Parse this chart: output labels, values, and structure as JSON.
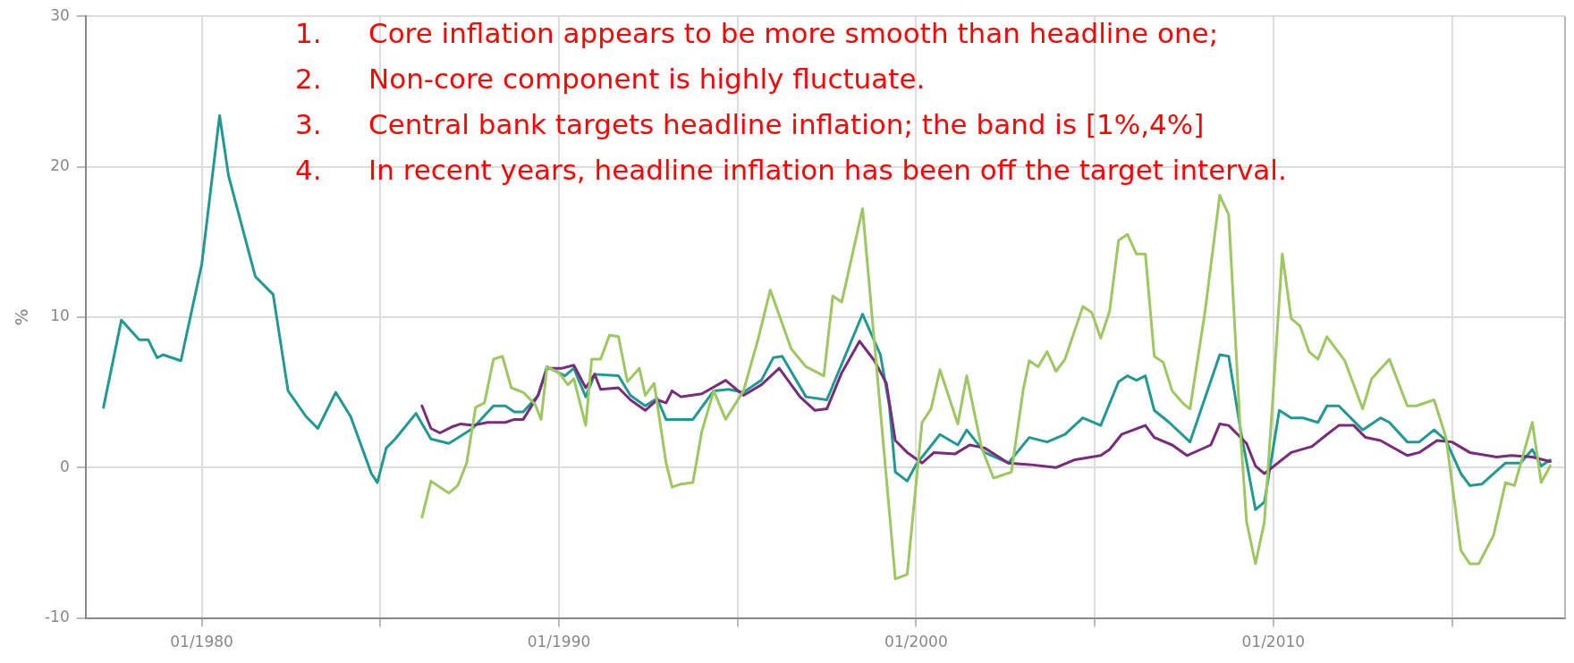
{
  "chart_data": {
    "type": "line",
    "ylabel": "%",
    "xlim": [
      "1976-10",
      "2018-03"
    ],
    "ylim": [
      -10,
      30
    ],
    "xticks": [
      {
        "value": "1980-01",
        "label": "01/1980"
      },
      {
        "value": "1985-01",
        "label": null
      },
      {
        "value": "1990-01",
        "label": "01/1990"
      },
      {
        "value": "1995-01",
        "label": null
      },
      {
        "value": "2000-01",
        "label": "01/2000"
      },
      {
        "value": "2005-01",
        "label": null
      },
      {
        "value": "2010-01",
        "label": "01/2010"
      },
      {
        "value": "2015-01",
        "label": null
      }
    ],
    "yticks": [
      -10,
      0,
      10,
      20,
      30
    ],
    "grid": true,
    "legend": false,
    "marker": "none",
    "line_style": "solid",
    "annotations": [
      "1.\tCore inflation appears to be more smooth than headline one;",
      "2.\tNon-core component is highly fluctuate.",
      "3.\tCentral bank targets headline inflation; the band is [1%,4%]",
      "4.\tIn recent years, headline inflation has been off the target interval."
    ],
    "series": [
      {
        "color": "#9dc75f",
        "x": [
          "1986-03",
          "1986-06",
          "1986-12",
          "1987-03",
          "1987-06",
          "1987-09",
          "1987-12",
          "1988-03",
          "1988-06",
          "1988-09",
          "1989-01",
          "1989-05",
          "1989-07",
          "1989-09",
          "1990-01",
          "1990-04",
          "1990-06",
          "1990-10",
          "1990-12",
          "1991-03",
          "1991-06",
          "1991-09",
          "1991-12",
          "1992-04",
          "1992-06",
          "1992-09",
          "1993-01",
          "1993-03",
          "1993-06",
          "1993-10",
          "1994-01",
          "1994-05",
          "1994-09",
          "1995-03",
          "1995-08",
          "1995-12",
          "1996-07",
          "1996-12",
          "1997-06",
          "1997-09",
          "1997-12",
          "1998-07",
          "1999-06",
          "1999-10",
          "2000-03",
          "2000-06",
          "2000-09",
          "2001-03",
          "2001-06",
          "2001-11",
          "2002-03",
          "2002-09",
          "2003-01",
          "2003-03",
          "2003-06",
          "2003-09",
          "2003-12",
          "2004-03",
          "2004-09",
          "2004-12",
          "2005-03",
          "2005-06",
          "2005-09",
          "2005-12",
          "2006-03",
          "2006-06",
          "2006-09",
          "2006-12",
          "2007-03",
          "2007-07",
          "2007-09",
          "2008-02",
          "2008-07",
          "2008-10",
          "2009-02",
          "2009-04",
          "2009-07",
          "2009-10",
          "2010-01",
          "2010-04",
          "2010-07",
          "2010-10",
          "2011-01",
          "2011-04",
          "2011-07",
          "2012-01",
          "2012-07",
          "2012-10",
          "2013-04",
          "2013-10",
          "2014-01",
          "2014-07",
          "2014-11",
          "2015-04",
          "2015-07",
          "2015-10",
          "2016-03",
          "2016-07",
          "2016-10",
          "2017-04",
          "2017-07",
          "2017-10"
        ],
        "values": [
          -3.3,
          -0.9,
          -1.7,
          -1.2,
          0.3,
          4.0,
          4.3,
          7.2,
          7.4,
          5.3,
          5.0,
          4.2,
          3.2,
          6.7,
          6.3,
          5.5,
          5.9,
          2.8,
          7.2,
          7.2,
          8.8,
          8.7,
          5.7,
          6.6,
          4.8,
          5.6,
          0.3,
          -1.3,
          -1.1,
          -1.0,
          2.4,
          5.1,
          3.2,
          5.1,
          8.6,
          11.8,
          7.9,
          6.7,
          6.1,
          11.4,
          11.0,
          17.2,
          -7.4,
          -7.1,
          3.0,
          3.9,
          6.5,
          2.9,
          6.1,
          1.3,
          -0.7,
          -0.3,
          5.2,
          7.1,
          6.7,
          7.7,
          6.4,
          7.2,
          10.7,
          10.3,
          8.6,
          10.4,
          15.1,
          15.5,
          14.2,
          14.2,
          7.4,
          7.0,
          5.1,
          4.2,
          3.9,
          10.3,
          18.1,
          16.8,
          2.2,
          -3.6,
          -6.4,
          -3.6,
          5.1,
          14.2,
          9.9,
          9.4,
          7.7,
          7.2,
          8.7,
          7.1,
          3.9,
          5.9,
          7.2,
          4.1,
          4.1,
          4.5,
          2.0,
          -5.5,
          -6.4,
          -6.4,
          -4.5,
          -1.0,
          -1.2,
          3.0,
          -1.0,
          0.1
        ]
      },
      {
        "color": "#7a2b7c",
        "x": [
          "1986-03",
          "1986-06",
          "1986-09",
          "1987-01",
          "1987-04",
          "1987-08",
          "1988-01",
          "1988-07",
          "1988-10",
          "1989-01",
          "1989-06",
          "1989-09",
          "1990-02",
          "1990-06",
          "1990-10",
          "1991-01",
          "1991-03",
          "1991-09",
          "1992-01",
          "1992-06",
          "1992-10",
          "1993-01",
          "1993-03",
          "1993-06",
          "1994-01",
          "1994-09",
          "1995-03",
          "1995-09",
          "1996-03",
          "1996-10",
          "1997-03",
          "1997-07",
          "1997-12",
          "1998-06",
          "1998-11",
          "1999-03",
          "1999-06",
          "1999-10",
          "2000-03",
          "2000-07",
          "2001-02",
          "2001-07",
          "2001-12",
          "2002-08",
          "2003-03",
          "2003-12",
          "2004-06",
          "2005-03",
          "2005-06",
          "2005-10",
          "2006-06",
          "2006-09",
          "2007-03",
          "2007-08",
          "2008-04",
          "2008-07",
          "2008-10",
          "2009-04",
          "2009-07",
          "2009-10",
          "2010-07",
          "2011-02",
          "2011-07",
          "2011-11",
          "2012-04",
          "2012-08",
          "2013-01",
          "2013-10",
          "2014-02",
          "2014-08",
          "2015-01",
          "2015-07",
          "2016-04",
          "2016-09",
          "2017-04",
          "2017-10"
        ],
        "values": [
          4.1,
          2.6,
          2.3,
          2.7,
          2.9,
          2.8,
          3.0,
          3.0,
          3.2,
          3.2,
          4.8,
          6.6,
          6.6,
          6.8,
          5.3,
          6.2,
          5.2,
          5.3,
          4.5,
          3.8,
          4.5,
          4.3,
          5.1,
          4.7,
          4.9,
          5.8,
          4.8,
          5.5,
          6.6,
          4.7,
          3.8,
          3.9,
          6.3,
          8.4,
          7.1,
          5.6,
          1.8,
          1.0,
          0.3,
          1.0,
          0.9,
          1.5,
          1.3,
          0.3,
          0.2,
          0.0,
          0.5,
          0.8,
          1.2,
          2.2,
          2.8,
          2.0,
          1.5,
          0.8,
          1.5,
          2.9,
          2.8,
          1.6,
          0.1,
          -0.4,
          1.0,
          1.4,
          2.2,
          2.8,
          2.8,
          2.0,
          1.8,
          0.8,
          1.0,
          1.8,
          1.7,
          1.0,
          0.7,
          0.8,
          0.7,
          0.4
        ]
      },
      {
        "color": "#1f9a93",
        "x": [
          "1977-04",
          "1977-10",
          "1978-04",
          "1978-07",
          "1978-10",
          "1978-12",
          "1979-06",
          "1980-01",
          "1980-07",
          "1980-10",
          "1981-07",
          "1982-01",
          "1982-06",
          "1982-12",
          "1983-04",
          "1983-10",
          "1984-03",
          "1984-10",
          "1984-12",
          "1985-03",
          "1985-06",
          "1986-01",
          "1986-06",
          "1986-12",
          "1987-08",
          "1988-03",
          "1988-07",
          "1988-10",
          "1989-01",
          "1989-06",
          "1989-09",
          "1990-03",
          "1990-06",
          "1990-10",
          "1991-01",
          "1991-09",
          "1992-01",
          "1992-06",
          "1992-10",
          "1993-01",
          "1993-10",
          "1994-05",
          "1994-10",
          "1995-03",
          "1995-09",
          "1996-01",
          "1996-04",
          "1996-12",
          "1997-07",
          "1998-07",
          "1999-01",
          "1999-04",
          "1999-06",
          "1999-10",
          "2000-01",
          "2000-09",
          "2001-03",
          "2001-06",
          "2001-12",
          "2002-08",
          "2003-03",
          "2003-09",
          "2004-03",
          "2004-09",
          "2005-03",
          "2005-09",
          "2005-12",
          "2006-03",
          "2006-06",
          "2006-09",
          "2007-02",
          "2007-09",
          "2008-07",
          "2008-10",
          "2009-02",
          "2009-07",
          "2009-10",
          "2010-03",
          "2010-07",
          "2010-11",
          "2011-04",
          "2011-07",
          "2011-11",
          "2012-07",
          "2013-01",
          "2013-04",
          "2013-10",
          "2014-02",
          "2014-07",
          "2014-11",
          "2015-04",
          "2015-07",
          "2015-11",
          "2016-07",
          "2016-12",
          "2017-04",
          "2017-07",
          "2017-10"
        ],
        "values": [
          4.0,
          9.8,
          8.5,
          8.5,
          7.3,
          7.5,
          7.1,
          13.5,
          23.4,
          19.4,
          12.7,
          11.5,
          5.1,
          3.4,
          2.6,
          5.0,
          3.4,
          -0.4,
          -1.0,
          1.3,
          1.9,
          3.6,
          1.9,
          1.6,
          2.6,
          4.1,
          4.1,
          3.7,
          3.7,
          4.8,
          6.7,
          6.1,
          6.6,
          4.7,
          6.2,
          6.1,
          4.8,
          4.1,
          4.6,
          3.2,
          3.2,
          5.1,
          5.2,
          5.0,
          5.8,
          7.3,
          7.4,
          4.7,
          4.5,
          10.2,
          7.5,
          4.1,
          -0.3,
          -0.9,
          0.2,
          2.2,
          1.5,
          2.5,
          1.0,
          0.3,
          2.0,
          1.7,
          2.2,
          3.3,
          2.8,
          5.7,
          6.1,
          5.8,
          6.1,
          3.8,
          3.0,
          1.7,
          7.5,
          7.4,
          2.5,
          -2.8,
          -2.3,
          3.8,
          3.3,
          3.3,
          3.0,
          4.1,
          4.1,
          2.5,
          3.3,
          3.0,
          1.7,
          1.7,
          2.5,
          1.8,
          -0.4,
          -1.2,
          -1.1,
          0.3,
          0.3,
          1.2,
          0.1,
          0.5
        ]
      }
    ]
  }
}
